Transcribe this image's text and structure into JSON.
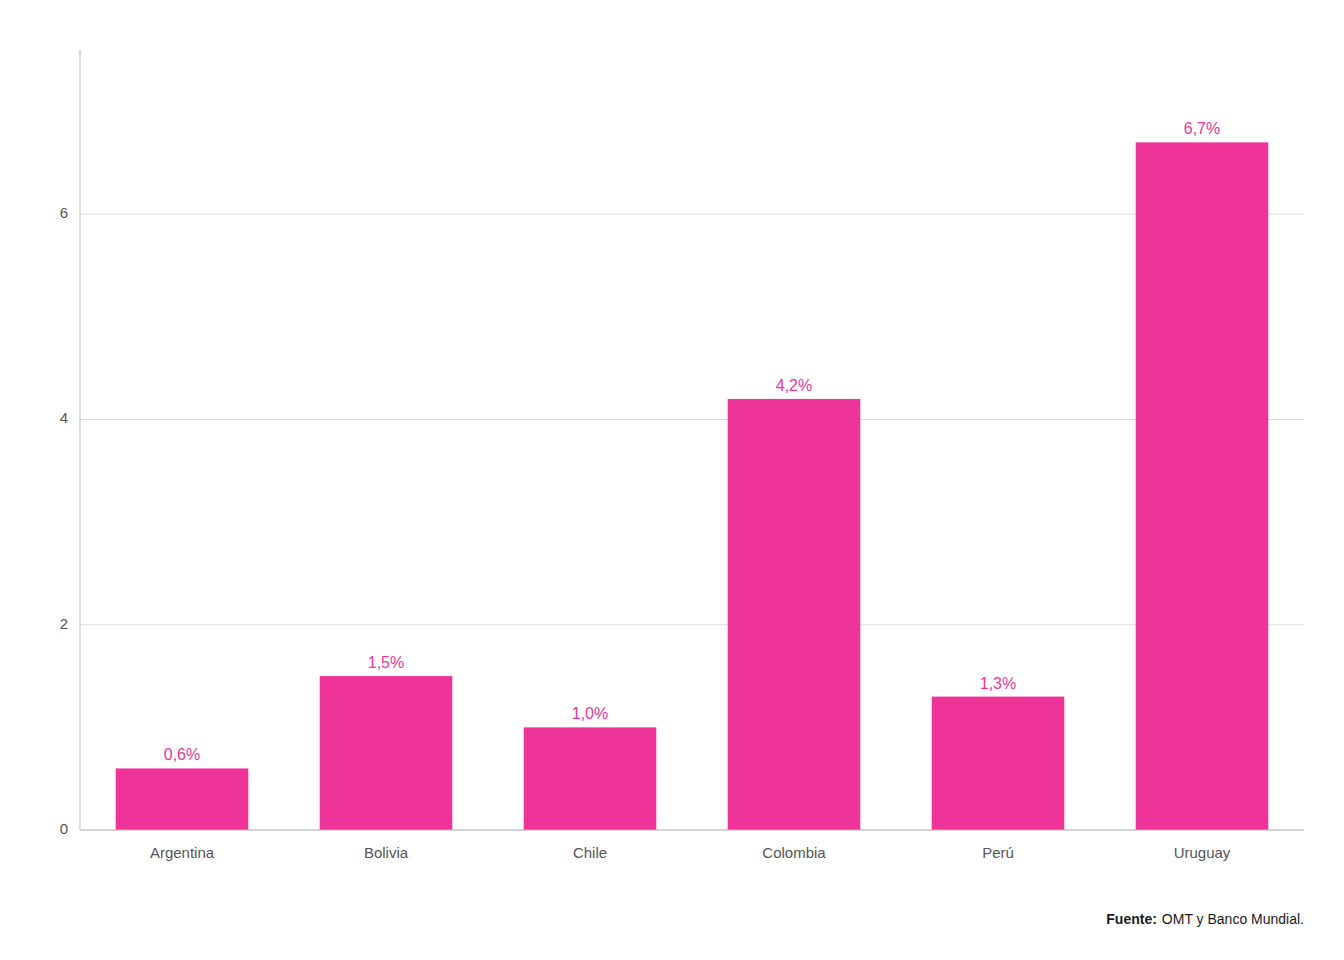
{
  "chart_data": {
    "type": "bar",
    "categories": [
      "Argentina",
      "Bolivia",
      "Chile",
      "Colombia",
      "Perú",
      "Uruguay"
    ],
    "values": [
      0.6,
      1.5,
      1.0,
      4.2,
      1.3,
      6.7
    ],
    "value_labels": [
      "0,6%",
      "1,5%",
      "1,0%",
      "4,2%",
      "1,3%",
      "6,7%"
    ],
    "color": "#EE3399",
    "ylim": [
      0,
      7.6
    ],
    "yticks": [
      0,
      2,
      4,
      6
    ],
    "grid": true,
    "data_labels": true,
    "annotations": [
      "Fuente:",
      "OMT y Banco Mundial."
    ]
  }
}
